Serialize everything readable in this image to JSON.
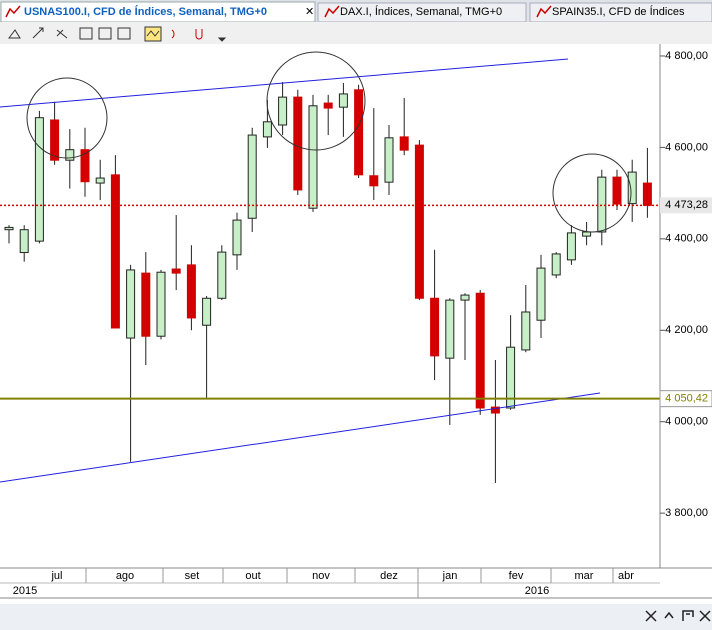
{
  "tabs": [
    "USNAS100.I, CFD de Índices, Semanal, TMG+0",
    "DAX.I, Índices, Semanal, TMG+0",
    "SPAIN35.I, CFD de Índices"
  ],
  "chart_data": {
    "type": "candlestick",
    "open": [
      4420,
      4370,
      4395,
      4660,
      4572,
      4595,
      4522,
      4540,
      4183,
      4325,
      4187,
      4334,
      4343,
      4211,
      4270,
      4365,
      4445,
      4623,
      4649,
      4710,
      4467,
      4697,
      4688,
      4726,
      4538,
      4524,
      4623,
      4605,
      4270,
      4139,
      4266,
      4281,
      4032,
      4030,
      4157,
      4222,
      4321,
      4354,
      4406,
      4415,
      4535,
      4477,
      4522
    ],
    "high": [
      4430,
      4430,
      4680,
      4700,
      4640,
      4643,
      4573,
      4583,
      4343,
      4371,
      4332,
      4452,
      4386,
      4275,
      4386,
      4457,
      4643,
      4704,
      4743,
      4726,
      4715,
      4715,
      4741,
      4737,
      4686,
      4649,
      4708,
      4616,
      4376,
      4270,
      4281,
      4288,
      4135,
      4233,
      4299,
      4365,
      4371,
      4430,
      4437,
      4551,
      4551,
      4573,
      4599
    ],
    "low": [
      4390,
      4350,
      4390,
      4562,
      4510,
      4492,
      4485,
      4205,
      3912,
      4124,
      4180,
      4288,
      4200,
      4052,
      4266,
      4332,
      4415,
      4599,
      4627,
      4496,
      4459,
      4627,
      4623,
      4533,
      4485,
      4496,
      4583,
      4266,
      4091,
      3993,
      4135,
      4015,
      3866,
      4026,
      4152,
      4183,
      4314,
      4343,
      4386,
      4386,
      4463,
      4437,
      4446
    ],
    "close": [
      4425,
      4420,
      4665,
      4572,
      4595,
      4525,
      4533,
      4205,
      4332,
      4187,
      4327,
      4325,
      4227,
      4270,
      4371,
      4441,
      4627,
      4656,
      4710,
      4507,
      4691,
      4686,
      4717,
      4540,
      4516,
      4621,
      4594,
      4270,
      4144,
      4266,
      4277,
      4030,
      4019,
      4163,
      4240,
      4336,
      4367,
      4413,
      4415,
      4535,
      4476,
      4546,
      4473.28
    ],
    "up_color": "#c8f0c8",
    "down_color": "#d40000",
    "ylim": [
      3680,
      4824
    ],
    "yticks": [
      {
        "value": 3800,
        "label": "3 800,00"
      },
      {
        "value": 4000,
        "label": "4 000,00"
      },
      {
        "value": 4200,
        "label": "4 200,00"
      },
      {
        "value": 4400,
        "label": "4 400,00"
      },
      {
        "value": 4600,
        "label": "4 600,00"
      },
      {
        "value": 4800,
        "label": "4 800,00"
      }
    ],
    "grid": false,
    "months": [
      "jul",
      "ago",
      "set",
      "out",
      "nov",
      "dez",
      "jan",
      "fev",
      "mar",
      "abr"
    ],
    "years": [
      "2015",
      "2016"
    ],
    "levels": [
      {
        "value": 4473.28,
        "label": "4 473,28",
        "color": "#d40000"
      },
      {
        "value": 4050.42,
        "label": "4 050,42",
        "color": "#808000"
      }
    ]
  }
}
